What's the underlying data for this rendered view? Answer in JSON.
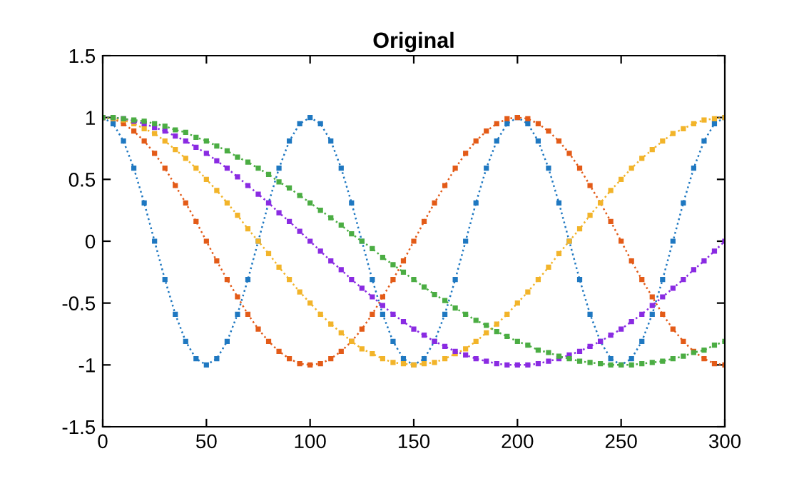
{
  "chart_data": {
    "type": "line",
    "title": "Original",
    "x": [
      0,
      5,
      10,
      15,
      20,
      25,
      30,
      35,
      40,
      45,
      50,
      55,
      60,
      65,
      70,
      75,
      80,
      85,
      90,
      95,
      100,
      105,
      110,
      115,
      120,
      125,
      130,
      135,
      140,
      145,
      150,
      155,
      160,
      165,
      170,
      175,
      180,
      185,
      190,
      195,
      200,
      205,
      210,
      215,
      220,
      225,
      230,
      235,
      240,
      245,
      250,
      255,
      260,
      265,
      270,
      275,
      280,
      285,
      290,
      295,
      300
    ],
    "series": [
      {
        "color": "#1f78c1",
        "values": [
          1,
          0.95,
          0.81,
          0.59,
          0.31,
          0,
          -0.31,
          -0.59,
          -0.81,
          -0.95,
          -1,
          -0.95,
          -0.81,
          -0.59,
          -0.31,
          0,
          0.31,
          0.59,
          0.81,
          0.95,
          1,
          0.95,
          0.81,
          0.59,
          0.31,
          0,
          -0.31,
          -0.59,
          -0.81,
          -0.95,
          -1,
          -0.95,
          -0.81,
          -0.59,
          -0.31,
          0,
          0.31,
          0.59,
          0.81,
          0.95,
          1,
          0.95,
          0.81,
          0.59,
          0.31,
          0,
          -0.31,
          -0.59,
          -0.81,
          -0.95,
          -1,
          -0.95,
          -0.81,
          -0.59,
          -0.31,
          0,
          0.31,
          0.59,
          0.81,
          0.95,
          1
        ]
      },
      {
        "color": "#e35b18",
        "values": [
          1,
          0.99,
          0.95,
          0.89,
          0.81,
          0.71,
          0.59,
          0.45,
          0.31,
          0.16,
          0,
          -0.16,
          -0.31,
          -0.45,
          -0.59,
          -0.71,
          -0.81,
          -0.89,
          -0.95,
          -0.99,
          -1,
          -0.99,
          -0.95,
          -0.89,
          -0.81,
          -0.71,
          -0.59,
          -0.45,
          -0.31,
          -0.16,
          0,
          0.16,
          0.31,
          0.45,
          0.59,
          0.71,
          0.81,
          0.89,
          0.95,
          0.99,
          1,
          0.99,
          0.95,
          0.89,
          0.81,
          0.71,
          0.59,
          0.45,
          0.31,
          0.16,
          0,
          -0.16,
          -0.31,
          -0.45,
          -0.59,
          -0.71,
          -0.81,
          -0.89,
          -0.95,
          -0.99,
          -1
        ]
      },
      {
        "color": "#f2b42a",
        "values": [
          1,
          0.99,
          0.98,
          0.95,
          0.91,
          0.87,
          0.81,
          0.74,
          0.67,
          0.59,
          0.5,
          0.41,
          0.31,
          0.21,
          0.1,
          0,
          -0.1,
          -0.21,
          -0.31,
          -0.41,
          -0.5,
          -0.59,
          -0.67,
          -0.74,
          -0.81,
          -0.87,
          -0.91,
          -0.95,
          -0.98,
          -0.99,
          -1,
          -0.99,
          -0.98,
          -0.95,
          -0.91,
          -0.87,
          -0.81,
          -0.74,
          -0.67,
          -0.59,
          -0.5,
          -0.41,
          -0.31,
          -0.21,
          -0.1,
          0,
          0.1,
          0.21,
          0.31,
          0.41,
          0.5,
          0.59,
          0.67,
          0.74,
          0.81,
          0.87,
          0.91,
          0.95,
          0.98,
          0.99,
          1
        ]
      },
      {
        "color": "#8a2be2",
        "values": [
          1,
          1,
          0.99,
          0.97,
          0.95,
          0.92,
          0.89,
          0.85,
          0.81,
          0.76,
          0.71,
          0.65,
          0.59,
          0.52,
          0.45,
          0.38,
          0.31,
          0.23,
          0.16,
          0.08,
          0,
          -0.08,
          -0.16,
          -0.23,
          -0.31,
          -0.38,
          -0.45,
          -0.52,
          -0.59,
          -0.65,
          -0.71,
          -0.76,
          -0.81,
          -0.85,
          -0.89,
          -0.92,
          -0.95,
          -0.97,
          -0.99,
          -1,
          -1,
          -1,
          -0.99,
          -0.97,
          -0.95,
          -0.92,
          -0.89,
          -0.85,
          -0.81,
          -0.76,
          -0.71,
          -0.65,
          -0.59,
          -0.52,
          -0.45,
          -0.38,
          -0.31,
          -0.23,
          -0.16,
          -0.08,
          0
        ]
      },
      {
        "color": "#4bad43",
        "values": [
          1,
          1,
          0.99,
          0.98,
          0.97,
          0.95,
          0.93,
          0.9,
          0.88,
          0.84,
          0.81,
          0.77,
          0.73,
          0.68,
          0.64,
          0.59,
          0.54,
          0.48,
          0.43,
          0.37,
          0.31,
          0.25,
          0.19,
          0.13,
          0.06,
          0,
          -0.06,
          -0.13,
          -0.19,
          -0.25,
          -0.31,
          -0.37,
          -0.43,
          -0.48,
          -0.54,
          -0.59,
          -0.64,
          -0.68,
          -0.73,
          -0.77,
          -0.81,
          -0.84,
          -0.88,
          -0.9,
          -0.93,
          -0.95,
          -0.97,
          -0.98,
          -0.99,
          -1,
          -1,
          -1,
          -0.99,
          -0.98,
          -0.97,
          -0.95,
          -0.93,
          -0.9,
          -0.88,
          -0.84,
          -0.81
        ]
      }
    ],
    "xlim": [
      0,
      300
    ],
    "xticks": [
      0,
      50,
      100,
      150,
      200,
      250,
      300
    ],
    "ylim": [
      -1.5,
      1.5
    ],
    "yticks": [
      -1.5,
      -1,
      -0.5,
      0,
      0.5,
      1,
      1.5
    ],
    "grid": false,
    "marker": "square",
    "line_style": "dotted"
  }
}
